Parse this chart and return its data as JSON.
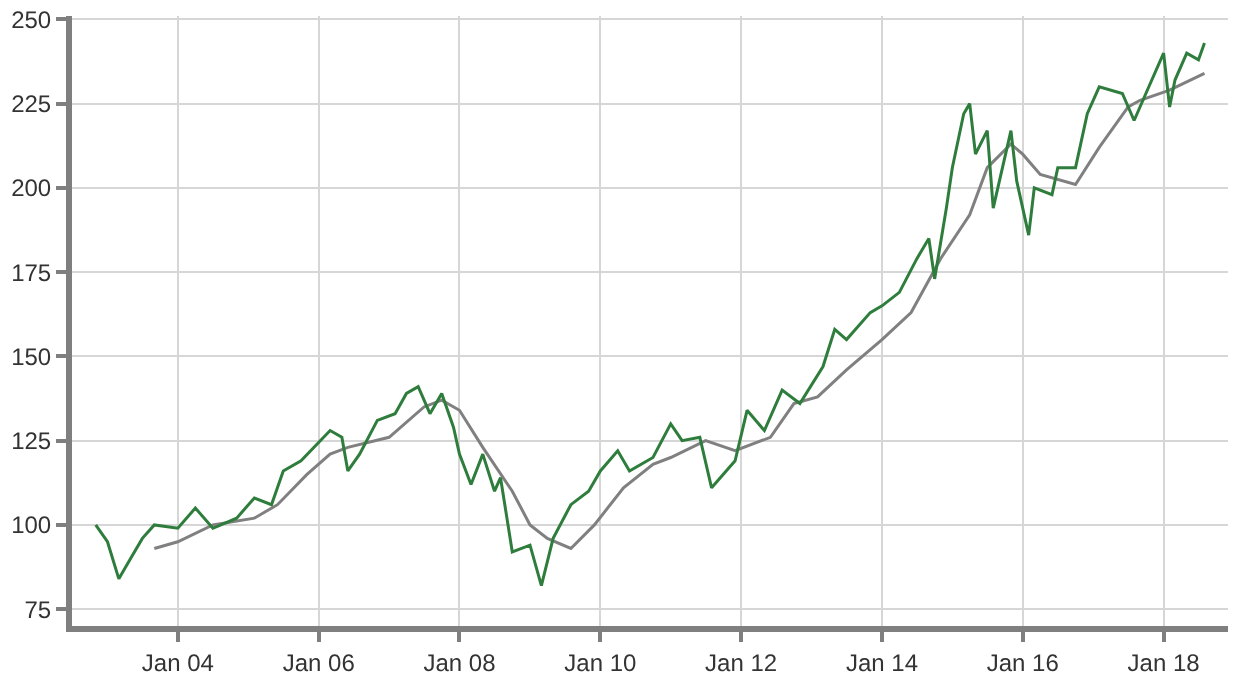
{
  "chart_data": {
    "type": "line",
    "xlim": [
      "2002-07",
      "2018-12"
    ],
    "xticks": [
      {
        "value": "2004-01-01",
        "label": "Jan 04"
      },
      {
        "value": "2006-01-01",
        "label": "Jan 06"
      },
      {
        "value": "2008-01-01",
        "label": "Jan 08"
      },
      {
        "value": "2010-01-01",
        "label": "Jan 10"
      },
      {
        "value": "2012-01-01",
        "label": "Jan 12"
      },
      {
        "value": "2014-01-01",
        "label": "Jan 14"
      },
      {
        "value": "2016-01-01",
        "label": "Jan 16"
      },
      {
        "value": "2018-01-01",
        "label": "Jan 18"
      }
    ],
    "ylim": [
      70,
      251
    ],
    "yticks": [
      75,
      100,
      125,
      150,
      175,
      200,
      225,
      250
    ],
    "grid": true,
    "legend": false,
    "marker": "none",
    "line_style": "solid",
    "series": [
      {
        "color": "#808080",
        "x": [
          "2003-09",
          "2004-01",
          "2004-07",
          "2005-02",
          "2005-06",
          "2005-11",
          "2006-03",
          "2006-06",
          "2007-01",
          "2007-07",
          "2007-10",
          "2008-01",
          "2008-05",
          "2008-10",
          "2009-01",
          "2009-04",
          "2009-08",
          "2009-12",
          "2010-05",
          "2010-10",
          "2011-01",
          "2011-07",
          "2011-12",
          "2012-06",
          "2012-10",
          "2013-02",
          "2013-07",
          "2014-01",
          "2014-06",
          "2014-11",
          "2015-04",
          "2015-07",
          "2015-11",
          "2016-01",
          "2016-04",
          "2016-10",
          "2017-02",
          "2017-07",
          "2017-09",
          "2018-02",
          "2018-08"
        ],
        "values": [
          93,
          95,
          100,
          102,
          106,
          115,
          121,
          123,
          126,
          135,
          137,
          134,
          123,
          110,
          100,
          96,
          93,
          100,
          111,
          118,
          120,
          125,
          122,
          126,
          136,
          138,
          146,
          155,
          163,
          179,
          192,
          206,
          213,
          210,
          204,
          201,
          212,
          224,
          226,
          229,
          234
        ]
      },
      {
        "color": "#2e7d3c",
        "x": [
          "2002-11",
          "2003-01",
          "2003-03",
          "2003-05",
          "2003-07",
          "2003-09",
          "2004-01",
          "2004-04",
          "2004-07",
          "2004-11",
          "2005-02",
          "2005-05",
          "2005-07",
          "2005-10",
          "2006-03",
          "2006-05",
          "2006-06",
          "2006-08",
          "2006-11",
          "2007-02",
          "2007-04",
          "2007-06",
          "2007-08",
          "2007-10",
          "2007-12",
          "2008-01",
          "2008-03",
          "2008-05",
          "2008-07",
          "2008-08",
          "2008-10",
          "2009-01",
          "2009-03",
          "2009-05",
          "2009-08",
          "2009-11",
          "2010-01",
          "2010-04",
          "2010-06",
          "2010-08",
          "2010-10",
          "2011-01",
          "2011-03",
          "2011-06",
          "2011-08",
          "2011-12",
          "2012-02",
          "2012-05",
          "2012-08",
          "2012-11",
          "2013-03",
          "2013-05",
          "2013-07",
          "2013-11",
          "2014-01",
          "2014-04",
          "2014-07",
          "2014-09",
          "2014-10",
          "2014-12",
          "2015-01",
          "2015-03",
          "2015-04",
          "2015-05",
          "2015-07",
          "2015-08",
          "2015-11",
          "2015-12",
          "2016-02",
          "2016-03",
          "2016-06",
          "2016-07",
          "2016-10",
          "2016-12",
          "2017-02",
          "2017-06",
          "2017-08",
          "2017-10",
          "2018-01",
          "2018-02",
          "2018-03",
          "2018-05",
          "2018-07",
          "2018-08"
        ],
        "values": [
          100,
          95,
          84,
          90,
          96,
          100,
          99,
          105,
          99,
          102,
          108,
          106,
          116,
          119,
          128,
          126,
          116,
          121,
          131,
          133,
          139,
          141,
          133,
          139,
          129,
          121,
          112,
          121,
          110,
          114,
          92,
          94,
          82,
          96,
          106,
          110,
          116,
          122,
          116,
          118,
          120,
          130,
          125,
          126,
          111,
          119,
          134,
          128,
          140,
          136,
          147,
          158,
          155,
          163,
          165,
          169,
          179,
          185,
          173,
          194,
          206,
          222,
          225,
          210,
          217,
          194,
          217,
          202,
          186,
          200,
          198,
          206,
          206,
          222,
          230,
          228,
          220,
          228,
          240,
          224,
          232,
          240,
          238,
          243
        ]
      }
    ]
  }
}
